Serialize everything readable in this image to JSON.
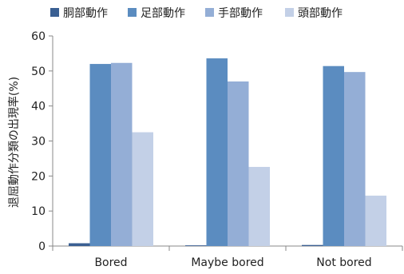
{
  "chart_data": {
    "type": "bar",
    "categories": [
      "Bored",
      "Maybe bored",
      "Not bored"
    ],
    "series": [
      {
        "name": "胴部動作",
        "color": "#3a5f92",
        "values": [
          0.8,
          0.2,
          0.3
        ]
      },
      {
        "name": "足部動作",
        "color": "#5b8cc0",
        "values": [
          52.0,
          53.6,
          51.4
        ]
      },
      {
        "name": "手部動作",
        "color": "#94aed6",
        "values": [
          52.3,
          47.0,
          49.7
        ]
      },
      {
        "name": "頭部動作",
        "color": "#c3d0e7",
        "values": [
          32.5,
          22.6,
          14.4
        ]
      }
    ],
    "ylabel": "退屈動作分類の出現率(%)",
    "xlabel": "",
    "ylim": [
      0,
      60
    ],
    "yticks": [
      0,
      10,
      20,
      30,
      40,
      50,
      60
    ],
    "grid": false,
    "legend_position": "top"
  }
}
